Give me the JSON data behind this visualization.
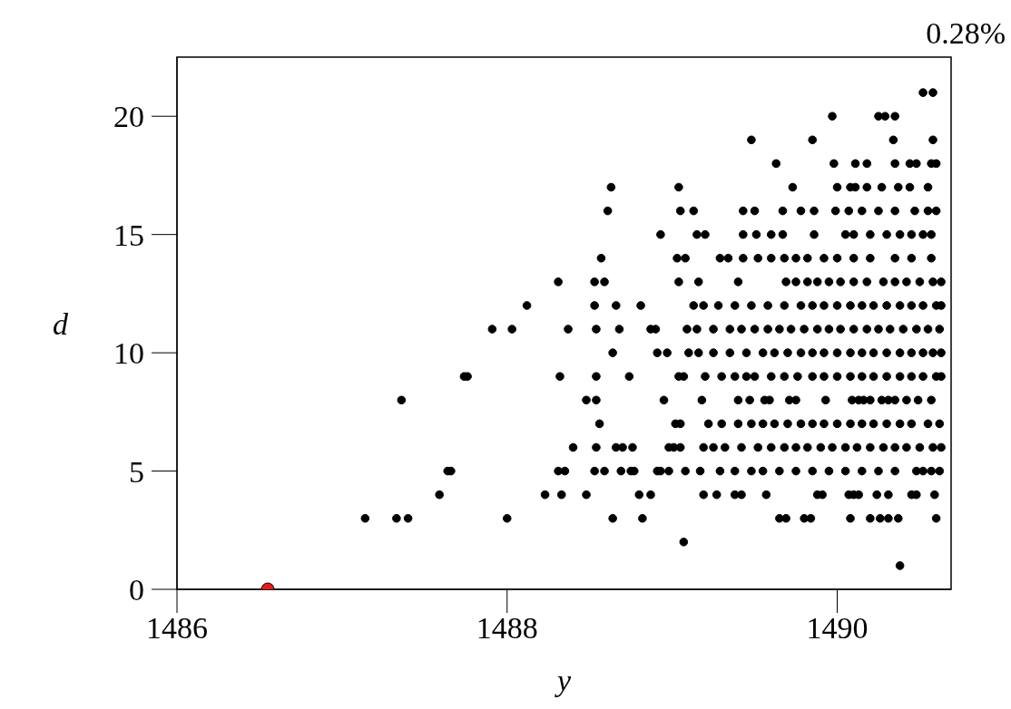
{
  "chart_data": {
    "type": "scatter",
    "xlabel": "y",
    "ylabel": "d",
    "annotations": [
      "0.28%"
    ],
    "xlim": [
      1486,
      1490.69
    ],
    "ylim": [
      0,
      22.5
    ],
    "xticks": [
      1486,
      1488,
      1490
    ],
    "yticks": [
      0,
      5,
      10,
      15,
      20
    ],
    "marker": "circle",
    "series": [
      {
        "color": "#000000",
        "x": [
          1490.38,
          1489.07,
          1487.14,
          1487.33,
          1487.4,
          1488.0,
          1488.64,
          1488.82,
          1489.65,
          1489.69,
          1489.8,
          1489.84,
          1490.08,
          1490.2,
          1490.26,
          1490.31,
          1490.37,
          1490.6,
          1487.59,
          1488.23,
          1488.33,
          1488.48,
          1488.8,
          1488.87,
          1489.19,
          1489.27,
          1489.38,
          1489.42,
          1489.57,
          1489.88,
          1489.91,
          1490.07,
          1490.1,
          1490.13,
          1490.24,
          1490.31,
          1490.45,
          1490.48,
          1490.59,
          1487.64,
          1487.66,
          1488.31,
          1488.35,
          1488.53,
          1488.59,
          1488.69,
          1488.75,
          1488.77,
          1488.91,
          1488.93,
          1488.98,
          1489.08,
          1489.17,
          1489.29,
          1489.38,
          1489.48,
          1489.55,
          1489.65,
          1489.75,
          1489.85,
          1489.95,
          1490.05,
          1490.15,
          1490.25,
          1490.35,
          1490.48,
          1490.52,
          1490.57,
          1490.62,
          1488.4,
          1488.54,
          1488.66,
          1488.7,
          1488.76,
          1488.98,
          1489.01,
          1489.05,
          1489.19,
          1489.25,
          1489.32,
          1489.42,
          1489.52,
          1489.6,
          1489.68,
          1489.75,
          1489.82,
          1489.9,
          1489.97,
          1490.05,
          1490.12,
          1490.2,
          1490.28,
          1490.35,
          1490.42,
          1490.5,
          1490.58,
          1490.63,
          1488.56,
          1489.02,
          1489.05,
          1489.22,
          1489.3,
          1489.4,
          1489.48,
          1489.55,
          1489.62,
          1489.7,
          1489.78,
          1489.85,
          1489.92,
          1490.0,
          1490.08,
          1490.15,
          1490.22,
          1490.3,
          1490.38,
          1490.45,
          1490.55,
          1490.62,
          1487.36,
          1488.48,
          1488.54,
          1488.95,
          1489.18,
          1489.4,
          1489.47,
          1489.56,
          1489.59,
          1489.71,
          1489.75,
          1489.93,
          1490.09,
          1490.13,
          1490.16,
          1490.2,
          1490.27,
          1490.31,
          1490.35,
          1490.42,
          1490.49,
          1490.57,
          1487.74,
          1487.76,
          1488.32,
          1488.54,
          1488.74,
          1489.04,
          1489.07,
          1489.2,
          1489.3,
          1489.38,
          1489.45,
          1489.5,
          1489.6,
          1489.68,
          1489.76,
          1489.85,
          1489.92,
          1490.0,
          1490.08,
          1490.15,
          1490.22,
          1490.3,
          1490.38,
          1490.45,
          1490.52,
          1490.6,
          1490.63,
          1488.64,
          1488.91,
          1488.97,
          1489.1,
          1489.16,
          1489.25,
          1489.35,
          1489.45,
          1489.55,
          1489.62,
          1489.7,
          1489.78,
          1489.85,
          1489.92,
          1490.0,
          1490.08,
          1490.15,
          1490.22,
          1490.3,
          1490.38,
          1490.45,
          1490.52,
          1490.58,
          1490.63,
          1487.91,
          1488.03,
          1488.37,
          1488.54,
          1488.68,
          1488.87,
          1488.9,
          1489.09,
          1489.15,
          1489.25,
          1489.35,
          1489.42,
          1489.5,
          1489.58,
          1489.65,
          1489.72,
          1489.8,
          1489.88,
          1489.95,
          1490.02,
          1490.1,
          1490.18,
          1490.25,
          1490.32,
          1490.4,
          1490.48,
          1490.55,
          1490.62,
          1488.12,
          1488.53,
          1488.66,
          1488.81,
          1489.13,
          1489.19,
          1489.28,
          1489.38,
          1489.48,
          1489.58,
          1489.68,
          1489.78,
          1489.85,
          1489.92,
          1490.0,
          1490.08,
          1490.15,
          1490.22,
          1490.3,
          1490.38,
          1490.45,
          1490.52,
          1490.6,
          1490.63,
          1488.31,
          1488.53,
          1488.59,
          1489.04,
          1489.16,
          1489.4,
          1489.69,
          1489.75,
          1489.82,
          1489.88,
          1489.95,
          1490.02,
          1490.1,
          1490.18,
          1490.28,
          1490.35,
          1490.42,
          1490.5,
          1490.58,
          1490.63,
          1488.57,
          1489.03,
          1489.08,
          1489.29,
          1489.34,
          1489.43,
          1489.52,
          1489.6,
          1489.68,
          1489.75,
          1489.82,
          1489.92,
          1490.0,
          1490.1,
          1490.2,
          1490.35,
          1490.45,
          1490.57,
          1488.93,
          1489.15,
          1489.2,
          1489.43,
          1489.51,
          1489.6,
          1489.67,
          1489.86,
          1490.05,
          1490.1,
          1490.2,
          1490.3,
          1490.38,
          1490.45,
          1490.52,
          1490.57,
          1488.61,
          1489.05,
          1489.13,
          1489.43,
          1489.5,
          1489.67,
          1489.78,
          1489.86,
          1489.99,
          1490.07,
          1490.15,
          1490.25,
          1490.35,
          1490.47,
          1490.55,
          1490.6,
          1488.63,
          1489.04,
          1489.73,
          1490.0,
          1490.08,
          1490.11,
          1490.18,
          1490.27,
          1490.37,
          1490.44,
          1490.55,
          1489.63,
          1489.98,
          1490.11,
          1490.18,
          1490.35,
          1490.44,
          1490.48,
          1490.57,
          1490.6,
          1489.48,
          1489.85,
          1490.34,
          1490.58,
          1489.97,
          1490.25,
          1490.29,
          1490.35,
          1490.52,
          1490.58
        ],
        "values": [
          1,
          2,
          3,
          3,
          3,
          3,
          3,
          3,
          3,
          3,
          3,
          3,
          3,
          3,
          3,
          3,
          3,
          3,
          4,
          4,
          4,
          4,
          4,
          4,
          4,
          4,
          4,
          4,
          4,
          4,
          4,
          4,
          4,
          4,
          4,
          4,
          4,
          4,
          4,
          5,
          5,
          5,
          5,
          5,
          5,
          5,
          5,
          5,
          5,
          5,
          5,
          5,
          5,
          5,
          5,
          5,
          5,
          5,
          5,
          5,
          5,
          5,
          5,
          5,
          5,
          5,
          5,
          5,
          5,
          6,
          6,
          6,
          6,
          6,
          6,
          6,
          6,
          6,
          6,
          6,
          6,
          6,
          6,
          6,
          6,
          6,
          6,
          6,
          6,
          6,
          6,
          6,
          6,
          6,
          6,
          6,
          6,
          7,
          7,
          7,
          7,
          7,
          7,
          7,
          7,
          7,
          7,
          7,
          7,
          7,
          7,
          7,
          7,
          7,
          7,
          7,
          7,
          7,
          7,
          8,
          8,
          8,
          8,
          8,
          8,
          8,
          8,
          8,
          8,
          8,
          8,
          8,
          8,
          8,
          8,
          8,
          8,
          8,
          8,
          8,
          8,
          9,
          9,
          9,
          9,
          9,
          9,
          9,
          9,
          9,
          9,
          9,
          9,
          9,
          9,
          9,
          9,
          9,
          9,
          9,
          9,
          9,
          9,
          9,
          9,
          9,
          9,
          9,
          10,
          10,
          10,
          10,
          10,
          10,
          10,
          10,
          10,
          10,
          10,
          10,
          10,
          10,
          10,
          10,
          10,
          10,
          10,
          10,
          10,
          10,
          10,
          10,
          11,
          11,
          11,
          11,
          11,
          11,
          11,
          11,
          11,
          11,
          11,
          11,
          11,
          11,
          11,
          11,
          11,
          11,
          11,
          11,
          11,
          11,
          11,
          11,
          11,
          11,
          11,
          11,
          12,
          12,
          12,
          12,
          12,
          12,
          12,
          12,
          12,
          12,
          12,
          12,
          12,
          12,
          12,
          12,
          12,
          12,
          12,
          12,
          12,
          12,
          12,
          12,
          13,
          13,
          13,
          13,
          13,
          13,
          13,
          13,
          13,
          13,
          13,
          13,
          13,
          13,
          13,
          13,
          13,
          13,
          13,
          13,
          14,
          14,
          14,
          14,
          14,
          14,
          14,
          14,
          14,
          14,
          14,
          14,
          14,
          14,
          14,
          14,
          14,
          14,
          15,
          15,
          15,
          15,
          15,
          15,
          15,
          15,
          15,
          15,
          15,
          15,
          15,
          15,
          15,
          15,
          16,
          16,
          16,
          16,
          16,
          16,
          16,
          16,
          16,
          16,
          16,
          16,
          16,
          16,
          16,
          16,
          17,
          17,
          17,
          17,
          17,
          17,
          17,
          17,
          17,
          17,
          17,
          18,
          18,
          18,
          18,
          18,
          18,
          18,
          18,
          18,
          19,
          19,
          19,
          19,
          20,
          20,
          20,
          20,
          21,
          21
        ]
      },
      {
        "color": "#e41a1c",
        "x": [
          1486.55
        ],
        "values": [
          0
        ]
      }
    ]
  }
}
